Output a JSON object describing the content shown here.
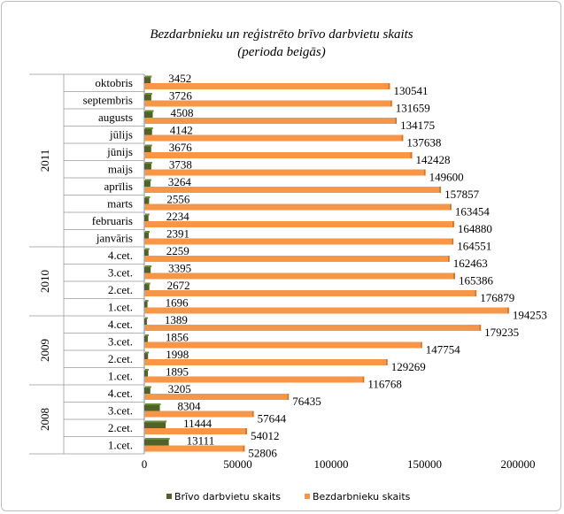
{
  "chart_data": {
    "type": "bar",
    "orientation": "horizontal",
    "title": "Bezdarbnieku un reģistrēto brīvo darbvietu skaits",
    "subtitle": "(perioda beigās)",
    "groups": [
      {
        "label": "2011",
        "categories": [
          "oktobris",
          "septembris",
          "augusts",
          "jūlijs",
          "jūnijs",
          "maijs",
          "aprīlis",
          "marts",
          "februaris",
          "janvāris"
        ]
      },
      {
        "label": "2010",
        "categories": [
          "4.cet.",
          "3.cet.",
          "2.cet.",
          "1.cet."
        ]
      },
      {
        "label": "2009",
        "categories": [
          "4.cet.",
          "3.cet.",
          "2.cet.",
          "1.cet."
        ]
      },
      {
        "label": "2008",
        "categories": [
          "4.cet.",
          "3.cet.",
          "2.cet.",
          "1.cet."
        ]
      }
    ],
    "series": [
      {
        "name": "Brīvo darbvietu skaits",
        "color": "#4f6228",
        "values": [
          3452,
          3726,
          4508,
          4142,
          3676,
          3738,
          3264,
          2556,
          2234,
          2391,
          2259,
          3395,
          2672,
          1696,
          1389,
          1856,
          1998,
          1895,
          3205,
          8304,
          11444,
          13111
        ]
      },
      {
        "name": "Bezdarbnieku skaits",
        "color": "#f79646",
        "values": [
          130541,
          131659,
          134175,
          137638,
          142428,
          149600,
          157857,
          163454,
          164880,
          164551,
          162463,
          165386,
          176879,
          194253,
          179235,
          147754,
          129269,
          116768,
          76435,
          57644,
          54012,
          52806
        ]
      }
    ],
    "xlim": [
      0,
      200000
    ],
    "xticks": [
      0,
      50000,
      100000,
      150000,
      200000
    ],
    "grid": false,
    "legend_position": "bottom"
  }
}
